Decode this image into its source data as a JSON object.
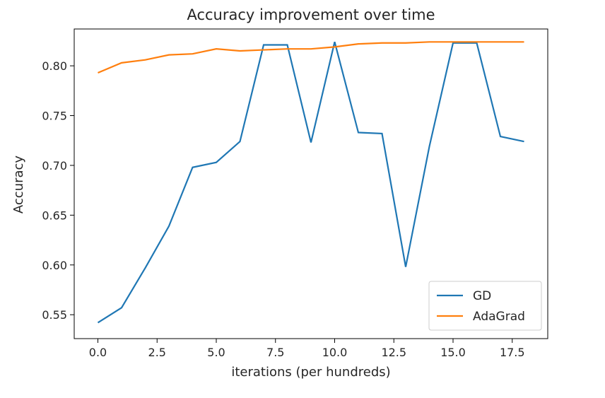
{
  "chart_data": {
    "type": "line",
    "title": "Accuracy improvement over time",
    "xlabel": "iterations (per hundreds)",
    "ylabel": "Accuracy",
    "xlim": [
      -1.0,
      19.0
    ],
    "ylim": [
      0.526,
      0.837
    ],
    "xticks": [
      0.0,
      2.5,
      5.0,
      7.5,
      10.0,
      12.5,
      15.0,
      17.5
    ],
    "xtick_labels": [
      "0.0",
      "2.5",
      "5.0",
      "7.5",
      "10.0",
      "12.5",
      "15.0",
      "17.5"
    ],
    "yticks": [
      0.55,
      0.6,
      0.65,
      0.7,
      0.75,
      0.8
    ],
    "ytick_labels": [
      "0.55",
      "0.60",
      "0.65",
      "0.70",
      "0.75",
      "0.80"
    ],
    "grid": false,
    "legend_position": "lower-right",
    "x": [
      0,
      1,
      2,
      3,
      4,
      5,
      6,
      7,
      8,
      9,
      10,
      11,
      12,
      13,
      14,
      15,
      16,
      17,
      18
    ],
    "series": [
      {
        "name": "GD",
        "color": "#1f77b4",
        "values": [
          0.542,
          0.557,
          0.597,
          0.639,
          0.698,
          0.703,
          0.724,
          0.821,
          0.821,
          0.723,
          0.824,
          0.733,
          0.732,
          0.598,
          0.719,
          0.823,
          0.823,
          0.729,
          0.724
        ]
      },
      {
        "name": "AdaGrad",
        "color": "#ff7f0e",
        "values": [
          0.793,
          0.803,
          0.806,
          0.811,
          0.812,
          0.817,
          0.815,
          0.816,
          0.817,
          0.817,
          0.819,
          0.822,
          0.823,
          0.823,
          0.824,
          0.824,
          0.824,
          0.824,
          0.824
        ]
      }
    ]
  }
}
